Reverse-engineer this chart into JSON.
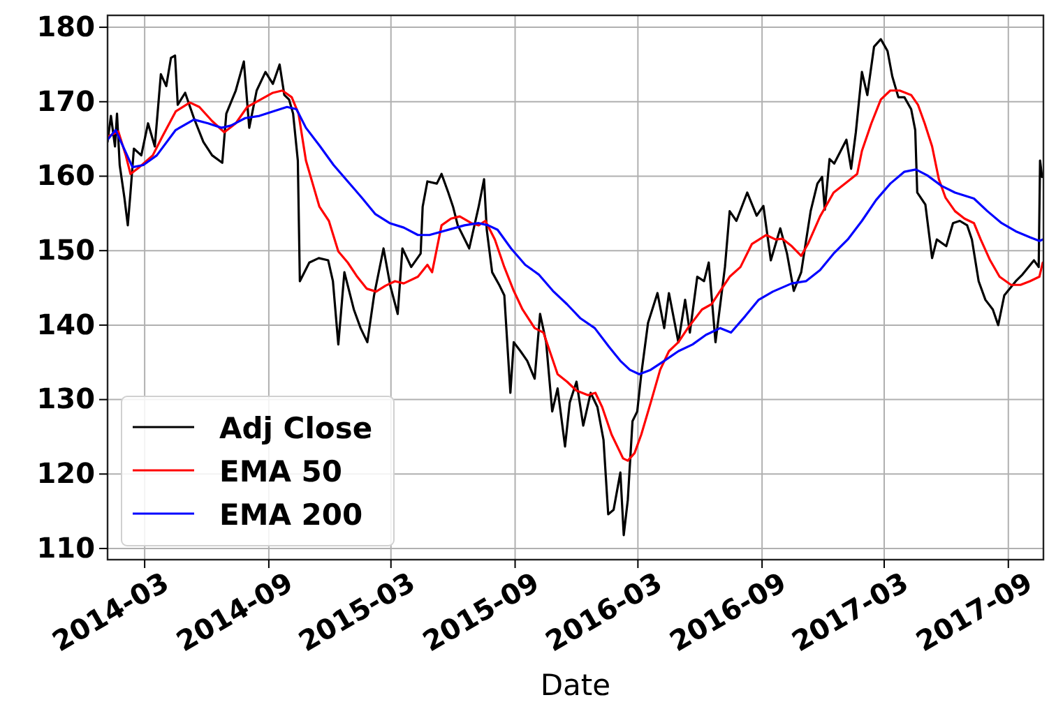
{
  "chart_data": {
    "type": "line",
    "xlabel": "Date",
    "xlim": [
      "2014-01-05",
      "2017-10-23"
    ],
    "xticks": [
      "2014-03",
      "2014-09",
      "2015-03",
      "2015-09",
      "2016-03",
      "2016-09",
      "2017-03",
      "2017-09"
    ],
    "ylim": [
      108.5,
      181.6
    ],
    "yticks": [
      110,
      120,
      130,
      140,
      150,
      160,
      170,
      180
    ],
    "grid": true,
    "legend": "bottom left",
    "line_style": "solid",
    "marker": "none",
    "series": [
      {
        "name": "Adj Close",
        "color": "#000000",
        "x": [
          "2014-01-05",
          "2014-01-10",
          "2014-01-16",
          "2014-01-19",
          "2014-01-23",
          "2014-01-30",
          "2014-02-04",
          "2014-02-08",
          "2014-02-13",
          "2014-02-24",
          "2014-03-06",
          "2014-03-16",
          "2014-03-25",
          "2014-04-02",
          "2014-04-09",
          "2014-04-15",
          "2014-04-19",
          "2014-04-30",
          "2014-05-13",
          "2014-05-27",
          "2014-06-09",
          "2014-06-24",
          "2014-06-30",
          "2014-07-14",
          "2014-07-26",
          "2014-08-03",
          "2014-08-14",
          "2014-08-27",
          "2014-09-07",
          "2014-09-17",
          "2014-09-24",
          "2014-10-01",
          "2014-10-07",
          "2014-10-14",
          "2014-10-17",
          "2014-10-31",
          "2014-11-14",
          "2014-11-28",
          "2014-12-05",
          "2014-12-13",
          "2014-12-22",
          "2015-01-05",
          "2015-01-15",
          "2015-01-25",
          "2015-02-04",
          "2015-02-18",
          "2015-02-28",
          "2015-03-11",
          "2015-03-18",
          "2015-03-31",
          "2015-04-14",
          "2015-04-17",
          "2015-04-24",
          "2015-05-08",
          "2015-05-15",
          "2015-05-25",
          "2015-06-01",
          "2015-06-08",
          "2015-06-25",
          "2015-07-09",
          "2015-07-17",
          "2015-07-21",
          "2015-07-29",
          "2015-08-09",
          "2015-08-16",
          "2015-08-25",
          "2015-08-30",
          "2015-09-09",
          "2015-09-19",
          "2015-09-30",
          "2015-10-08",
          "2015-10-17",
          "2015-10-26",
          "2015-11-03",
          "2015-11-14",
          "2015-11-21",
          "2015-12-01",
          "2015-12-11",
          "2015-12-22",
          "2016-01-01",
          "2016-01-10",
          "2016-01-17",
          "2016-01-25",
          "2016-02-04",
          "2016-02-09",
          "2016-02-15",
          "2016-02-22",
          "2016-02-29",
          "2016-03-06",
          "2016-03-16",
          "2016-03-30",
          "2016-04-09",
          "2016-04-16",
          "2016-04-30",
          "2016-05-10",
          "2016-05-17",
          "2016-05-28",
          "2016-06-07",
          "2016-06-14",
          "2016-06-24",
          "2016-07-08",
          "2016-07-15",
          "2016-07-25",
          "2016-08-10",
          "2016-08-24",
          "2016-09-03",
          "2016-09-14",
          "2016-09-28",
          "2016-10-08",
          "2016-10-18",
          "2016-10-29",
          "2016-11-12",
          "2016-11-22",
          "2016-11-29",
          "2016-12-03",
          "2016-12-10",
          "2016-12-17",
          "2017-01-04",
          "2017-01-11",
          "2017-01-18",
          "2017-01-27",
          "2017-02-04",
          "2017-02-14",
          "2017-02-24",
          "2017-03-06",
          "2017-03-13",
          "2017-03-22",
          "2017-03-31",
          "2017-04-10",
          "2017-04-16",
          "2017-04-19",
          "2017-05-01",
          "2017-05-11",
          "2017-05-18",
          "2017-06-01",
          "2017-06-11",
          "2017-06-21",
          "2017-07-02",
          "2017-07-09",
          "2017-07-19",
          "2017-07-29",
          "2017-08-09",
          "2017-08-17",
          "2017-08-26",
          "2017-09-12",
          "2017-09-22",
          "2017-10-09",
          "2017-10-16",
          "2017-10-18",
          "2017-10-21"
        ],
        "values": [
          164.6,
          168.1,
          164,
          168.4,
          161.5,
          157.1,
          153.4,
          157.8,
          163.7,
          162.8,
          167.1,
          164,
          173.7,
          172.1,
          175.9,
          176.2,
          169.6,
          171.2,
          167.8,
          164.6,
          162.8,
          161.8,
          168.4,
          171.5,
          175.4,
          166.5,
          171.5,
          174,
          172.4,
          175,
          170.9,
          170.3,
          168.4,
          162.1,
          145.9,
          148.4,
          149,
          148.7,
          145.9,
          137.4,
          147.1,
          142.1,
          139.6,
          137.7,
          144,
          150.3,
          145.3,
          141.5,
          150.3,
          147.8,
          149.6,
          155.9,
          159.3,
          159,
          160.3,
          157.8,
          155.9,
          153.4,
          150.3,
          155.9,
          159.6,
          152.8,
          147.1,
          145.3,
          144,
          130.9,
          137.7,
          136.5,
          135.2,
          132.8,
          141.5,
          137.7,
          128.4,
          131.5,
          123.7,
          129.6,
          132.4,
          126.5,
          130.9,
          129,
          124.6,
          114.6,
          115.2,
          120.2,
          111.8,
          116.5,
          127.1,
          128.4,
          133.4,
          140.3,
          144.3,
          139.6,
          144.3,
          137.7,
          143.4,
          139,
          146.5,
          145.9,
          148.4,
          137.7,
          147.8,
          155.3,
          154,
          157.8,
          154.7,
          156,
          148.7,
          153,
          149.6,
          144.6,
          147.1,
          155.3,
          159,
          159.9,
          155.5,
          162.3,
          161.7,
          164.9,
          161,
          165.9,
          174,
          170.9,
          177.4,
          178.4,
          176.8,
          173.4,
          170.6,
          170.6,
          169,
          166.2,
          157.8,
          156.2,
          149,
          151.5,
          150.6,
          153.7,
          154,
          153.4,
          151.5,
          145.9,
          143.4,
          142.1,
          140,
          144,
          145.9,
          146.8,
          148.7,
          147.8,
          162.1,
          159.9
        ]
      },
      {
        "name": "EMA 50",
        "color": "#ff0000",
        "x": [
          "2014-01-05",
          "2014-01-21",
          "2014-02-01",
          "2014-02-08",
          "2014-02-21",
          "2014-03-13",
          "2014-03-27",
          "2014-04-16",
          "2014-05-07",
          "2014-05-21",
          "2014-06-09",
          "2014-06-27",
          "2014-07-14",
          "2014-07-31",
          "2014-08-18",
          "2014-09-07",
          "2014-09-21",
          "2014-10-05",
          "2014-10-15",
          "2014-10-26",
          "2014-11-05",
          "2014-11-15",
          "2014-11-29",
          "2014-12-13",
          "2014-12-27",
          "2015-01-10",
          "2015-01-24",
          "2015-02-07",
          "2015-02-21",
          "2015-03-07",
          "2015-03-20",
          "2015-04-10",
          "2015-04-24",
          "2015-05-01",
          "2015-05-15",
          "2015-05-29",
          "2015-06-11",
          "2015-06-28",
          "2015-07-09",
          "2015-07-19",
          "2015-08-02",
          "2015-08-16",
          "2015-08-30",
          "2015-09-12",
          "2015-09-30",
          "2015-10-13",
          "2015-11-03",
          "2015-11-17",
          "2015-12-01",
          "2015-12-18",
          "2015-12-29",
          "2016-01-08",
          "2016-01-22",
          "2016-02-08",
          "2016-02-15",
          "2016-02-25",
          "2016-03-06",
          "2016-03-20",
          "2016-04-03",
          "2016-04-16",
          "2016-04-30",
          "2016-05-14",
          "2016-06-04",
          "2016-06-18",
          "2016-07-01",
          "2016-07-15",
          "2016-07-31",
          "2016-08-17",
          "2016-09-07",
          "2016-09-21",
          "2016-10-01",
          "2016-10-15",
          "2016-10-29",
          "2016-11-08",
          "2016-11-26",
          "2016-12-16",
          "2017-01-06",
          "2017-01-20",
          "2017-01-27",
          "2017-02-10",
          "2017-02-24",
          "2017-03-10",
          "2017-03-24",
          "2017-04-10",
          "2017-04-20",
          "2017-04-30",
          "2017-05-11",
          "2017-05-21",
          "2017-05-31",
          "2017-06-14",
          "2017-06-28",
          "2017-07-12",
          "2017-07-22",
          "2017-08-05",
          "2017-08-19",
          "2017-09-05",
          "2017-09-19",
          "2017-10-03",
          "2017-10-17",
          "2017-10-22"
        ],
        "values": [
          165.3,
          166,
          162.8,
          160.3,
          161.2,
          162.8,
          165.3,
          168.7,
          169.9,
          169.3,
          167.4,
          165.9,
          167.1,
          169.3,
          170.2,
          171.2,
          171.5,
          170.6,
          168.4,
          162.1,
          159,
          155.9,
          154,
          149.9,
          148.4,
          146.5,
          144.9,
          144.5,
          145.3,
          145.9,
          145.6,
          146.5,
          148.1,
          147.1,
          153.4,
          154.3,
          154.6,
          153.7,
          153.4,
          154,
          151.5,
          147.8,
          144.6,
          142.1,
          139.6,
          139,
          133.4,
          132.4,
          131.2,
          130.6,
          130.9,
          129,
          125.3,
          122.1,
          121.8,
          122.8,
          125.3,
          129.6,
          134,
          136.5,
          137.7,
          139.6,
          142.1,
          142.8,
          144.6,
          146.5,
          147.8,
          150.9,
          152.1,
          151.5,
          151.6,
          150.6,
          149.3,
          150.9,
          154.6,
          157.8,
          159.3,
          160.3,
          163.4,
          167.1,
          170.3,
          171.5,
          171.5,
          170.9,
          169.6,
          167.1,
          164,
          159.6,
          157.1,
          155.3,
          154.3,
          153.7,
          151.5,
          148.7,
          146.5,
          145.4,
          145.4,
          145.9,
          146.5,
          148.4
        ]
      },
      {
        "name": "EMA 200",
        "color": "#0000ff",
        "x": [
          "2014-01-05",
          "2014-01-17",
          "2014-01-28",
          "2014-02-11",
          "2014-02-27",
          "2014-03-19",
          "2014-04-16",
          "2014-05-13",
          "2014-06-03",
          "2014-06-23",
          "2014-07-07",
          "2014-07-28",
          "2014-08-18",
          "2014-09-07",
          "2014-09-28",
          "2014-10-12",
          "2014-10-26",
          "2014-11-16",
          "2014-12-06",
          "2014-12-27",
          "2015-01-17",
          "2015-02-06",
          "2015-02-27",
          "2015-03-20",
          "2015-04-10",
          "2015-04-27",
          "2015-06-18",
          "2015-07-09",
          "2015-07-23",
          "2015-08-06",
          "2015-08-26",
          "2015-09-16",
          "2015-10-06",
          "2015-10-27",
          "2015-11-17",
          "2015-12-07",
          "2015-12-28",
          "2016-01-18",
          "2016-02-04",
          "2016-02-18",
          "2016-03-03",
          "2016-03-20",
          "2016-04-09",
          "2016-04-30",
          "2016-05-21",
          "2016-06-10",
          "2016-07-01",
          "2016-07-17",
          "2016-08-07",
          "2016-08-27",
          "2016-09-17",
          "2016-10-15",
          "2016-11-05",
          "2016-11-26",
          "2016-12-16",
          "2017-01-06",
          "2017-01-27",
          "2017-02-17",
          "2017-03-10",
          "2017-03-31",
          "2017-04-17",
          "2017-05-04",
          "2017-05-25",
          "2017-06-14",
          "2017-07-12",
          "2017-08-01",
          "2017-08-22",
          "2017-09-12",
          "2017-10-03",
          "2017-10-17",
          "2017-10-22"
        ],
        "values": [
          164.9,
          166.2,
          164,
          161.2,
          161.5,
          162.8,
          166.2,
          167.6,
          167.1,
          166.5,
          166.8,
          167.8,
          168.1,
          168.7,
          169.3,
          169,
          166.5,
          164,
          161.5,
          159.3,
          157.1,
          154.9,
          153.7,
          153.1,
          152.1,
          152.1,
          153.4,
          153.7,
          153.4,
          152.8,
          150.3,
          148.1,
          146.8,
          144.6,
          142.8,
          140.9,
          139.6,
          137.1,
          135.2,
          134,
          133.4,
          134,
          135.2,
          136.5,
          137.4,
          138.7,
          139.6,
          139,
          141.2,
          143.4,
          144.5,
          145.6,
          145.9,
          147.4,
          149.6,
          151.5,
          154,
          156.8,
          159,
          160.6,
          160.9,
          160.1,
          158.7,
          157.8,
          157,
          155.3,
          153.7,
          152.6,
          151.8,
          151.3,
          151.5
        ]
      }
    ]
  }
}
